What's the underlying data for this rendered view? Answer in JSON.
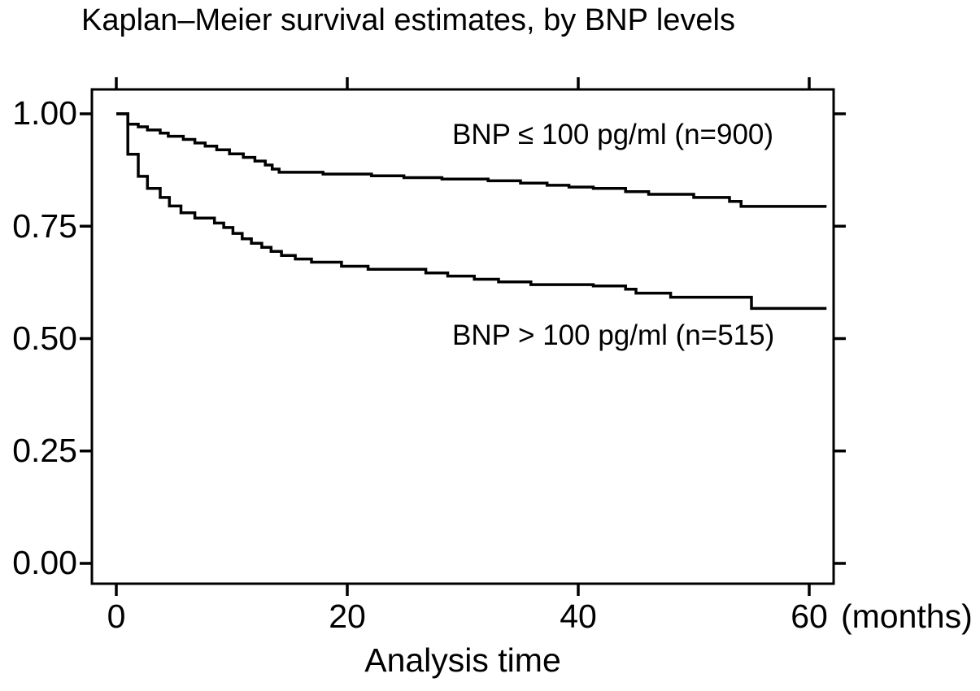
{
  "chart_data": {
    "type": "line",
    "subtype": "kaplan-meier-step",
    "title": "Kaplan–Meier survival estimates, by BNP levels",
    "xlabel": "Analysis time",
    "xunit": "(months)",
    "ylabel": "",
    "xlim": [
      0,
      62
    ],
    "ylim": [
      0.0,
      1.0
    ],
    "grid": "off",
    "legend_position": "annotations-inside-plot",
    "line_color": "#000000",
    "background_color": "#ffffff",
    "xticks": [
      {
        "value": 0,
        "label": "0"
      },
      {
        "value": 20,
        "label": "20"
      },
      {
        "value": 40,
        "label": "40"
      },
      {
        "value": 60,
        "label": "60"
      }
    ],
    "yticks_top_to_bottom": [
      {
        "value": 1.0,
        "label": "1.00"
      },
      {
        "value": 0.75,
        "label": "0.75"
      },
      {
        "value": 0.5,
        "label": "0.50"
      },
      {
        "value": 0.25,
        "label": "0.25"
      },
      {
        "value": 0.0,
        "label": "0.00"
      }
    ],
    "series": [
      {
        "name": "BNP ≤ 100 pg/ml",
        "n": 900,
        "annotation": "BNP ≤ 100 pg/ml (n=900)",
        "points": [
          [
            0,
            1.0
          ],
          [
            1,
            0.977
          ],
          [
            1.9,
            0.971
          ],
          [
            2.7,
            0.964
          ],
          [
            3.8,
            0.957
          ],
          [
            4.5,
            0.95
          ],
          [
            5.8,
            0.943
          ],
          [
            6.8,
            0.935
          ],
          [
            7.7,
            0.928
          ],
          [
            8.7,
            0.92
          ],
          [
            9.8,
            0.911
          ],
          [
            11,
            0.903
          ],
          [
            12,
            0.895
          ],
          [
            12.9,
            0.886
          ],
          [
            13.5,
            0.877
          ],
          [
            14.1,
            0.87
          ],
          [
            17.9,
            0.866
          ],
          [
            22.1,
            0.862
          ],
          [
            24.9,
            0.858
          ],
          [
            28.2,
            0.855
          ],
          [
            32.2,
            0.851
          ],
          [
            35,
            0.846
          ],
          [
            37.3,
            0.841
          ],
          [
            39.2,
            0.837
          ],
          [
            41.3,
            0.834
          ],
          [
            44.1,
            0.827
          ],
          [
            46.1,
            0.821
          ],
          [
            50,
            0.814
          ],
          [
            53.1,
            0.805
          ],
          [
            54.1,
            0.794
          ],
          [
            61.5,
            0.794
          ]
        ]
      },
      {
        "name": "BNP > 100 pg/ml",
        "n": 515,
        "annotation": "BNP > 100 pg/ml (n=515)",
        "points": [
          [
            0,
            1.0
          ],
          [
            1,
            0.91
          ],
          [
            1.9,
            0.861
          ],
          [
            2.7,
            0.834
          ],
          [
            3.8,
            0.814
          ],
          [
            4.6,
            0.795
          ],
          [
            5.6,
            0.78
          ],
          [
            6.8,
            0.768
          ],
          [
            8.5,
            0.757
          ],
          [
            9.3,
            0.747
          ],
          [
            10.1,
            0.734
          ],
          [
            10.9,
            0.722
          ],
          [
            11.7,
            0.712
          ],
          [
            12.6,
            0.703
          ],
          [
            13.4,
            0.694
          ],
          [
            14.3,
            0.685
          ],
          [
            15.5,
            0.677
          ],
          [
            16.9,
            0.67
          ],
          [
            19.5,
            0.661
          ],
          [
            21.8,
            0.654
          ],
          [
            26.8,
            0.646
          ],
          [
            28.7,
            0.639
          ],
          [
            31,
            0.632
          ],
          [
            33.1,
            0.626
          ],
          [
            35.9,
            0.62
          ],
          [
            41.3,
            0.617
          ],
          [
            44.1,
            0.61
          ],
          [
            45,
            0.601
          ],
          [
            48,
            0.592
          ],
          [
            55,
            0.567
          ],
          [
            61.5,
            0.567
          ]
        ]
      }
    ]
  }
}
